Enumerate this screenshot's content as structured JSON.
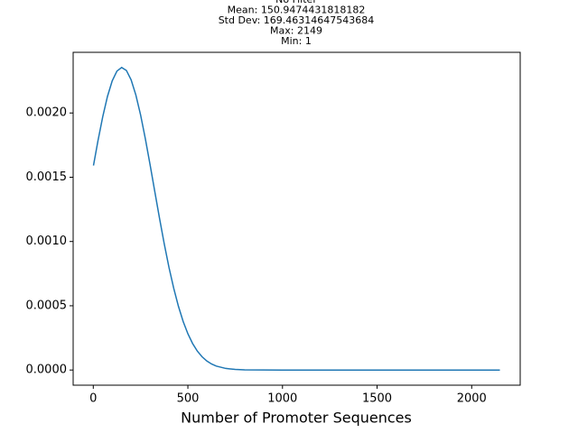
{
  "chart_data": {
    "type": "line",
    "title_lines": [
      "No Filter",
      "Mean: 150.9474431818182",
      "Std Dev: 169.46314647543684",
      "Max: 2149",
      "Min: 1"
    ],
    "x_label": "Number of Promoter Sequences",
    "x": [
      1,
      25,
      50,
      75,
      100,
      125,
      150,
      175,
      200,
      225,
      250,
      275,
      300,
      325,
      350,
      375,
      400,
      425,
      450,
      475,
      500,
      525,
      550,
      575,
      600,
      625,
      650,
      700,
      750,
      800,
      1000,
      1500,
      2149
    ],
    "series": [
      {
        "color": "#1f77b4",
        "values": [
          0.001591,
          0.001786,
          0.001971,
          0.002129,
          0.00225,
          0.002326,
          0.002354,
          0.002331,
          0.002258,
          0.00214,
          0.001985,
          0.001801,
          0.001599,
          0.001389,
          0.001181,
          0.000982,
          0.000799,
          0.000637,
          0.000496,
          0.000378,
          0.000282,
          0.000206,
          0.000147,
          0.000103,
          7.03e-05,
          4.71e-05,
          3.08e-05,
          1.24e-05,
          4.5e-06,
          1.5e-06,
          0,
          0,
          0
        ]
      }
    ],
    "xlim": [
      -106.4,
      2256.4
    ],
    "xticks": [
      0,
      500,
      1000,
      1500,
      2000
    ],
    "ylim": [
      -0.000118,
      0.002472
    ],
    "yticks": [
      {
        "value": 0,
        "label": "0.0000"
      },
      {
        "value": 0.0005,
        "label": "0.0005"
      },
      {
        "value": 0.001,
        "label": "0.0010"
      },
      {
        "value": 0.0015,
        "label": "0.0015"
      },
      {
        "value": 0.002,
        "label": "0.0020"
      }
    ]
  }
}
